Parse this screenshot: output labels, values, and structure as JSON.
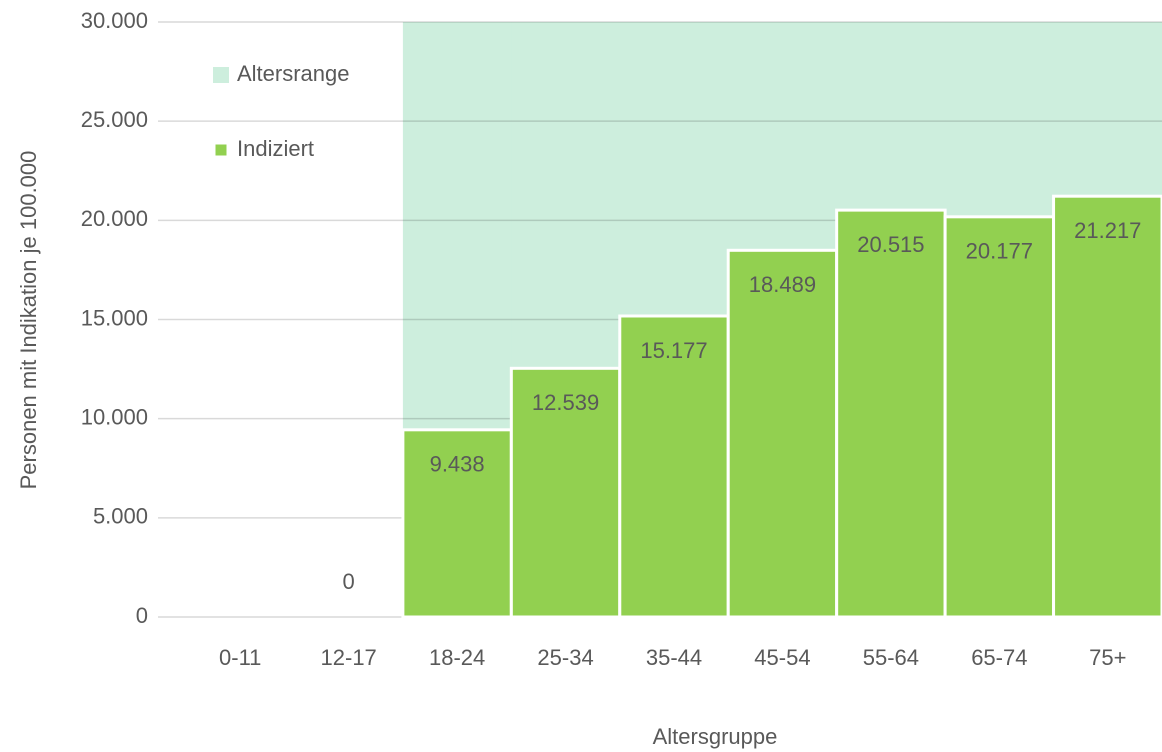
{
  "chart_data": {
    "type": "bar",
    "x_label": "Altersgruppe",
    "y_label": "Personen mit Indikation je 100.000",
    "categories": [
      "0-11",
      "12-17",
      "18-24",
      "25-34",
      "35-44",
      "45-54",
      "55-64",
      "65-74",
      "75+"
    ],
    "series": [
      {
        "name": "Altersrange",
        "color": "#cdeedd",
        "style": "area",
        "values": [
          null,
          null,
          30000,
          30000,
          30000,
          30000,
          30000,
          30000,
          30000
        ]
      },
      {
        "name": "Indiziert",
        "color": "#92d050",
        "style": "bar",
        "values": [
          null,
          0,
          9438,
          12539,
          15177,
          18489,
          20515,
          20177,
          21217
        ],
        "value_labels": [
          null,
          "0",
          "9.438",
          "12.539",
          "15.177",
          "18.489",
          "20.515",
          "20.177",
          "21.217"
        ]
      }
    ],
    "ylim": [
      0,
      30000
    ],
    "yticks": [
      0,
      {
        "value": 5000,
        "label": "5.000"
      },
      {
        "value": 10000,
        "label": "10.000"
      },
      {
        "value": 15000,
        "label": "15.000"
      },
      {
        "value": 20000,
        "label": "20.000"
      },
      {
        "value": 25000,
        "label": "25.000"
      },
      {
        "value": 30000,
        "label": "30.000"
      }
    ],
    "grid": true,
    "legend": "top-left"
  }
}
